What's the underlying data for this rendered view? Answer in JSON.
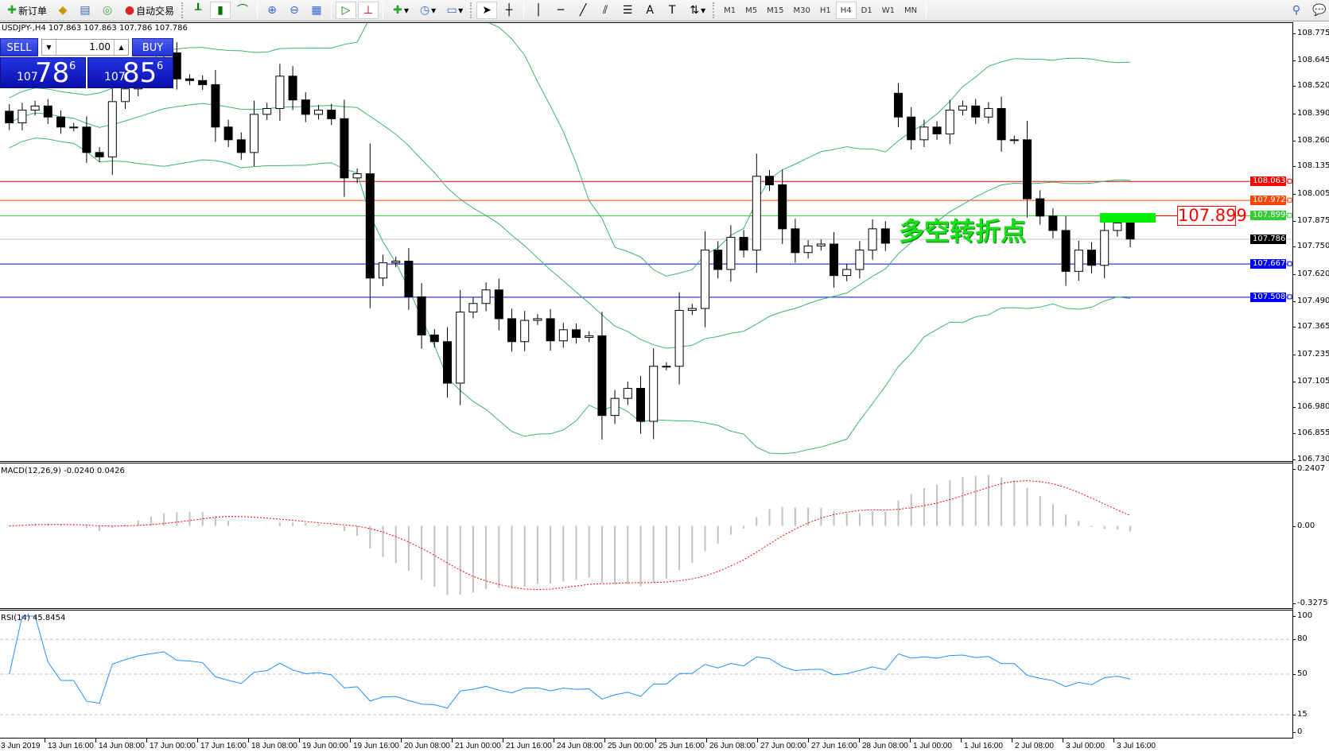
{
  "toolbar": {
    "new_order": "新订单",
    "auto_trading": "自动交易",
    "periods": [
      "M1",
      "M5",
      "M15",
      "M30",
      "H1",
      "H4",
      "D1",
      "W1",
      "MN"
    ],
    "active_period": "H4"
  },
  "symbol_info": "USDJPY-,H4  107.863 107.863 107.786 107.786",
  "trade_panel": {
    "sell_label": "SELL",
    "buy_label": "BUY",
    "lot": "1.00",
    "sell_price": {
      "prefix": "107",
      "big": "78",
      "sup": "6"
    },
    "buy_price": {
      "prefix": "107",
      "big": "85",
      "sup": "6"
    }
  },
  "annotation": {
    "text": "多空转折点",
    "price_tag": "107.899",
    "color": "#19e019"
  },
  "price_axis": [
    "108.775",
    "108.645",
    "108.520",
    "108.390",
    "108.260",
    "108.135",
    "108.005",
    "107.875",
    "107.750",
    "107.620",
    "107.490",
    "107.365",
    "107.235",
    "107.105",
    "106.980",
    "106.855",
    "106.730"
  ],
  "price_range": [
    106.73,
    108.775
  ],
  "horizontal_lines": [
    {
      "price": 108.063,
      "label": "108.063",
      "color": "#ff0000"
    },
    {
      "price": 107.972,
      "label": "107.972",
      "color": "#ff4500"
    },
    {
      "price": 107.899,
      "label": "107.899",
      "color": "#32cd32"
    },
    {
      "price": 107.786,
      "label": "107.786",
      "color": "#000000",
      "line_color": "#c0c0c0"
    },
    {
      "price": 107.667,
      "label": "107.667",
      "color": "#0000ff"
    },
    {
      "price": 107.508,
      "label": "107.508",
      "color": "#0000ff"
    }
  ],
  "candles": {
    "first_open": 108.4,
    "gap_opens": {
      "69": 108.486,
      "13": 108.68
    },
    "closes": [
      108.344,
      108.405,
      108.425,
      108.372,
      108.324,
      108.324,
      108.202,
      108.181,
      108.446,
      108.507,
      108.568,
      108.608,
      108.649,
      108.555,
      108.547,
      108.527,
      108.324,
      108.263,
      108.202,
      108.385,
      108.413,
      108.568,
      108.454,
      108.385,
      108.405,
      108.364,
      108.08,
      108.1,
      107.6,
      107.673,
      107.681,
      107.51,
      107.327,
      107.295,
      107.096,
      107.437,
      107.478,
      107.543,
      107.405,
      107.295,
      107.397,
      107.405,
      107.299,
      107.352,
      107.315,
      107.323,
      106.941,
      107.023,
      107.071,
      106.913,
      107.177,
      107.177,
      107.445,
      107.454,
      107.734,
      107.641,
      107.795,
      107.734,
      108.088,
      108.047,
      107.836,
      107.722,
      107.754,
      107.763,
      107.612,
      107.641,
      107.734,
      107.836,
      107.767,
      108.372,
      108.263,
      108.324,
      108.291,
      108.405,
      108.425,
      108.372,
      108.413,
      108.263,
      108.263,
      107.98,
      107.897,
      107.828,
      107.632,
      107.734,
      107.661,
      107.828,
      107.864,
      107.787
    ],
    "bull_color": "#ffffff",
    "bear_color": "#000000",
    "band_color": "#3cb371"
  },
  "macd": {
    "label": "MACD(12,26,9) -0.0240 0.0426",
    "axis": [
      "0.2407",
      "0.00",
      "-0.3275"
    ],
    "range": [
      -0.3275,
      0.2407
    ],
    "hist_color": "#c0c0c0",
    "signal_color": "#ff0000"
  },
  "rsi": {
    "label": "RSI(14) 45.8454",
    "axis": [
      "100",
      "80",
      "50",
      "15",
      "0"
    ],
    "levels": [
      80,
      50,
      15
    ],
    "color": "#1e90ff"
  },
  "time_axis": [
    "3 Jun 2019",
    "13 Jun 16:00",
    "14 Jun 08:00",
    "17 Jun 00:00",
    "17 Jun 16:00",
    "18 Jun 08:00",
    "19 Jun 00:00",
    "19 Jun 16:00",
    "20 Jun 08:00",
    "21 Jun 00:00",
    "21 Jun 16:00",
    "24 Jun 08:00",
    "25 Jun 00:00",
    "25 Jun 16:00",
    "26 Jun 08:00",
    "27 Jun 00:00",
    "27 Jun 16:00",
    "28 Jun 08:00",
    "1 Jul 00:00",
    "1 Jul 16:00",
    "2 Jul 08:00",
    "3 Jul 00:00",
    "3 Jul 16:00"
  ]
}
